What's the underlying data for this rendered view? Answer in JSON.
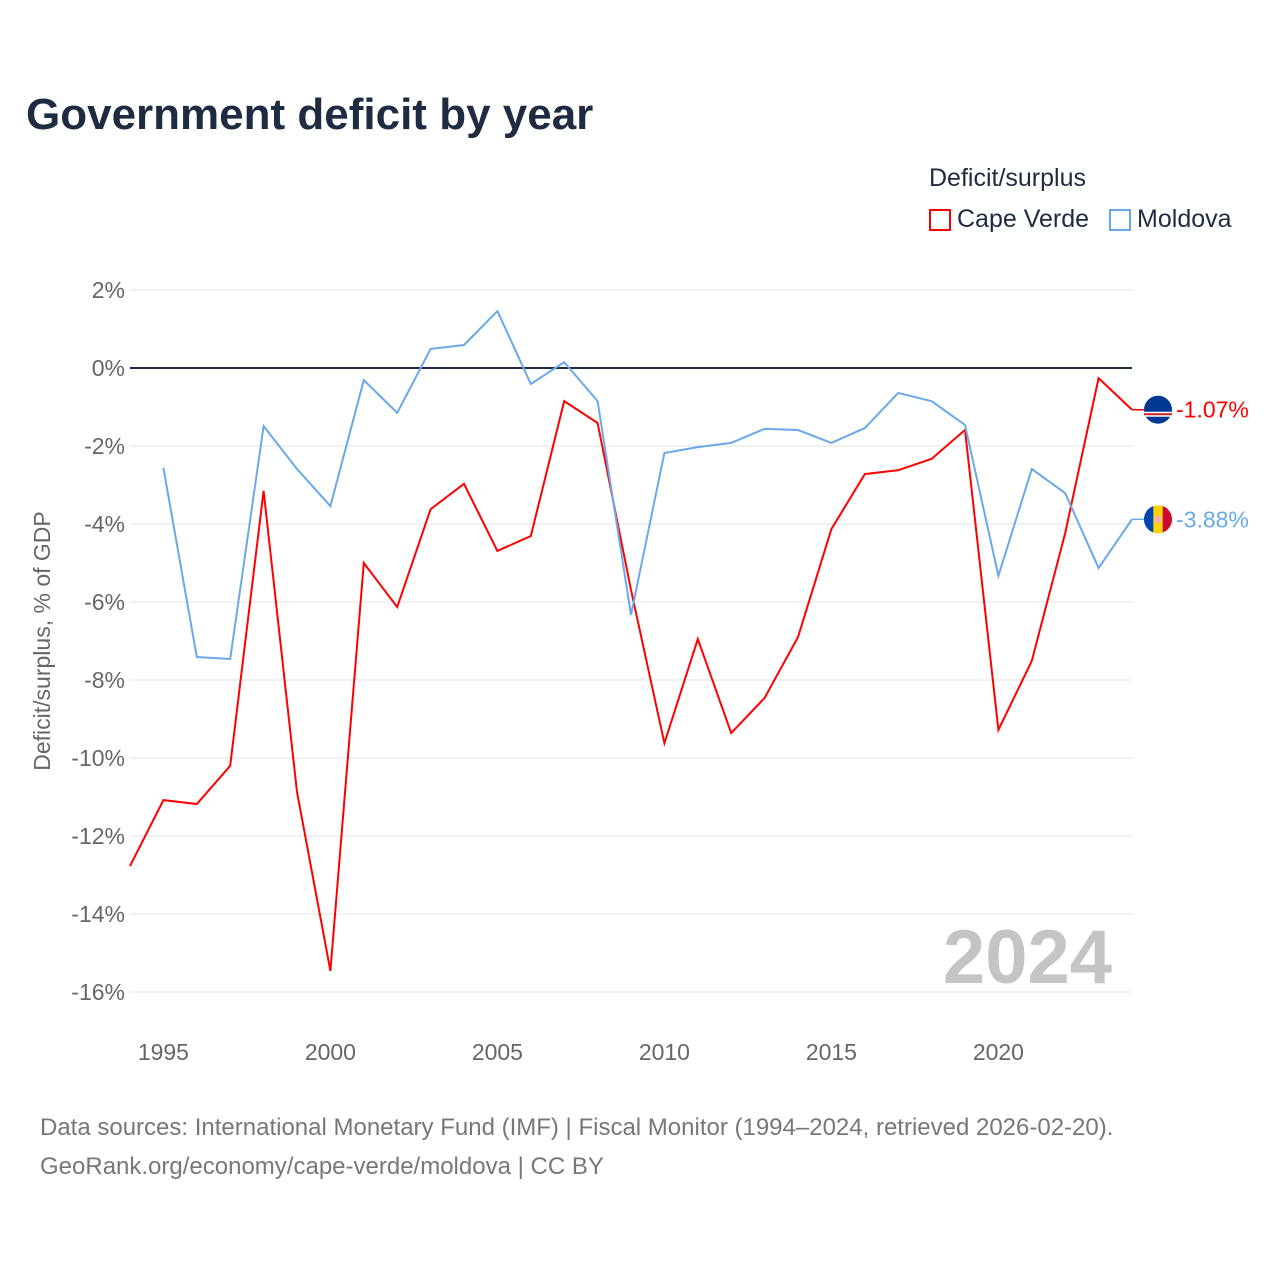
{
  "title": "Government deficit by year",
  "legend": {
    "title": "Deficit/surplus",
    "items": [
      {
        "label": "Cape Verde",
        "color": "#ff0000"
      },
      {
        "label": "Moldova",
        "color": "#6aa9e9"
      }
    ]
  },
  "footer": {
    "line1": "Data sources: International Monetary Fund (IMF) | Fiscal Monitor (1994–2024, retrieved 2026-02-20).",
    "line2": "GeoRank.org/economy/cape-verde/moldova | CC BY"
  },
  "chart_data": {
    "type": "line",
    "title": "Government deficit by year",
    "xlabel": "",
    "ylabel": "Deficit/surplus, % of GDP",
    "xlim": [
      1994,
      2024
    ],
    "ylim": [
      -16,
      2
    ],
    "yticks": [
      2,
      0,
      -2,
      -4,
      -6,
      -8,
      -10,
      -12,
      -14,
      -16
    ],
    "ytick_labels": [
      "2%",
      "0%",
      "-2%",
      "-4%",
      "-6%",
      "-8%",
      "-10%",
      "-12%",
      "-14%",
      "-16%"
    ],
    "xticks": [
      1995,
      2000,
      2005,
      2010,
      2015,
      2020
    ],
    "xtick_labels": [
      "1995",
      "2000",
      "2005",
      "2010",
      "2015",
      "2020"
    ],
    "watermark_year": "2024",
    "grid": true,
    "legend_position": "top-right",
    "series": [
      {
        "name": "Cape Verde",
        "color": "#ff0000",
        "end_label": "-1.07%",
        "x": [
          1994,
          1995,
          1996,
          1997,
          1998,
          1999,
          2000,
          2001,
          2002,
          2003,
          2004,
          2005,
          2006,
          2007,
          2008,
          2009,
          2010,
          2011,
          2012,
          2013,
          2014,
          2015,
          2016,
          2017,
          2018,
          2019,
          2020,
          2021,
          2022,
          2023,
          2024
        ],
        "values": [
          -12.77,
          -11.08,
          -11.18,
          -10.2,
          -3.15,
          -10.87,
          -15.46,
          -5.0,
          -6.13,
          -3.62,
          -2.97,
          -4.69,
          -4.31,
          -0.85,
          -1.41,
          -5.69,
          -9.62,
          -6.95,
          -9.36,
          -8.46,
          -6.9,
          -4.13,
          -2.72,
          -2.62,
          -2.33,
          -1.59,
          -9.28,
          -7.51,
          -4.23,
          -0.26,
          -1.07
        ]
      },
      {
        "name": "Moldova",
        "color": "#6aa9e9",
        "end_label": "-3.88%",
        "x": [
          1995,
          1996,
          1997,
          1998,
          1999,
          2000,
          2001,
          2002,
          2003,
          2004,
          2005,
          2006,
          2007,
          2008,
          2009,
          2010,
          2011,
          2012,
          2013,
          2014,
          2015,
          2016,
          2017,
          2018,
          2019,
          2020,
          2021,
          2022,
          2023,
          2024
        ],
        "values": [
          -2.56,
          -7.41,
          -7.46,
          -1.49,
          -2.59,
          -3.54,
          -0.31,
          -1.15,
          0.49,
          0.59,
          1.46,
          -0.41,
          0.15,
          -0.85,
          -6.33,
          -2.18,
          -2.03,
          -1.92,
          -1.56,
          -1.59,
          -1.92,
          -1.54,
          -0.64,
          -0.85,
          -1.46,
          -5.33,
          -2.59,
          -3.21,
          -5.13,
          -3.88
        ]
      }
    ]
  }
}
